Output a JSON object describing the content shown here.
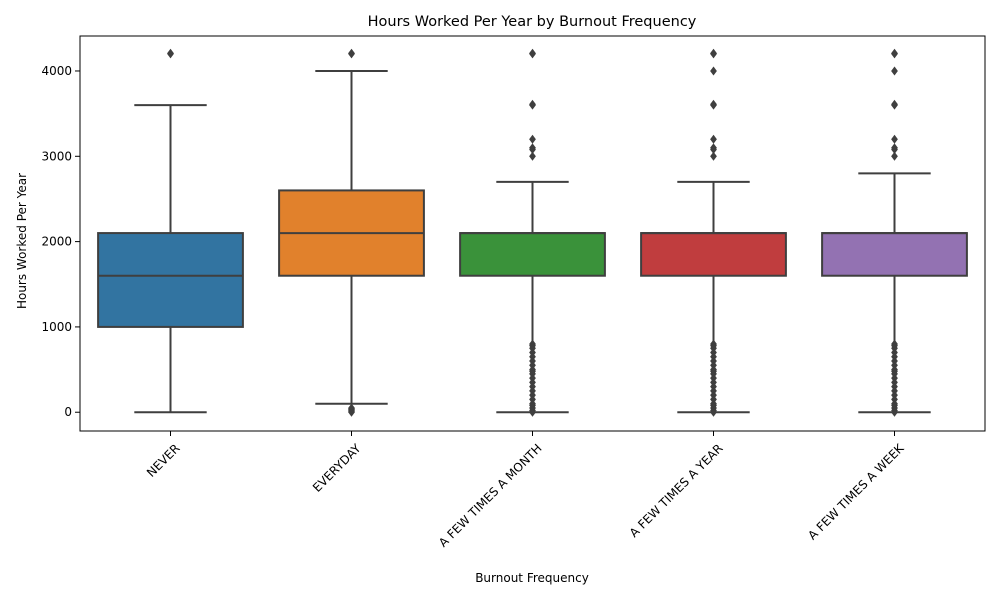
{
  "chart_data": {
    "type": "box",
    "title": "Hours Worked Per Year by Burnout Frequency",
    "xlabel": "Burnout Frequency",
    "ylabel": "Hours Worked Per Year",
    "ylim": [
      -220,
      4410
    ],
    "yticks": [
      0,
      1000,
      2000,
      3000,
      4000
    ],
    "categories": [
      "NEVER",
      "EVERYDAY",
      "A FEW TIMES A MONTH",
      "A FEW TIMES A YEAR",
      "A FEW TIMES A WEEK"
    ],
    "colors": [
      "#3274a1",
      "#e1812c",
      "#3a923a",
      "#c03d3e",
      "#9372b2"
    ],
    "edge_color": "#3f3f3f",
    "boxes": [
      {
        "q1": 1000,
        "median": 1600,
        "q3": 2100,
        "whisker_low": 0,
        "whisker_high": 3600,
        "outliers": [
          4200,
          4208
        ]
      },
      {
        "q1": 1600,
        "median": 2100,
        "q3": 2600,
        "whisker_low": 100,
        "whisker_high": 4000,
        "outliers": [
          4200,
          4208,
          0,
          10,
          20,
          30,
          40,
          50
        ]
      },
      {
        "q1": 1600,
        "median": 2100,
        "q3": 2100,
        "whisker_low": 0,
        "whisker_high": 2700,
        "outliers": [
          4200,
          4208,
          3600,
          3610,
          3200,
          3100,
          3080,
          3000,
          800,
          780,
          750,
          700,
          650,
          600,
          550,
          500,
          480,
          450,
          400,
          350,
          300,
          250,
          200,
          150,
          100,
          80,
          50,
          20,
          0
        ]
      },
      {
        "q1": 1600,
        "median": 2100,
        "q3": 2100,
        "whisker_low": 0,
        "whisker_high": 2700,
        "outliers": [
          4200,
          4208,
          4000,
          3600,
          3610,
          3200,
          3100,
          3080,
          3000,
          800,
          780,
          750,
          700,
          650,
          600,
          550,
          500,
          480,
          450,
          400,
          350,
          300,
          250,
          200,
          150,
          100,
          80,
          50,
          20,
          0
        ]
      },
      {
        "q1": 1600,
        "median": 2100,
        "q3": 2100,
        "whisker_low": 0,
        "whisker_high": 2800,
        "outliers": [
          4200,
          4208,
          4000,
          3600,
          3610,
          3200,
          3100,
          3080,
          3000,
          800,
          780,
          750,
          700,
          650,
          600,
          550,
          500,
          480,
          450,
          400,
          350,
          300,
          250,
          200,
          150,
          100,
          80,
          50,
          20,
          0
        ]
      }
    ]
  }
}
